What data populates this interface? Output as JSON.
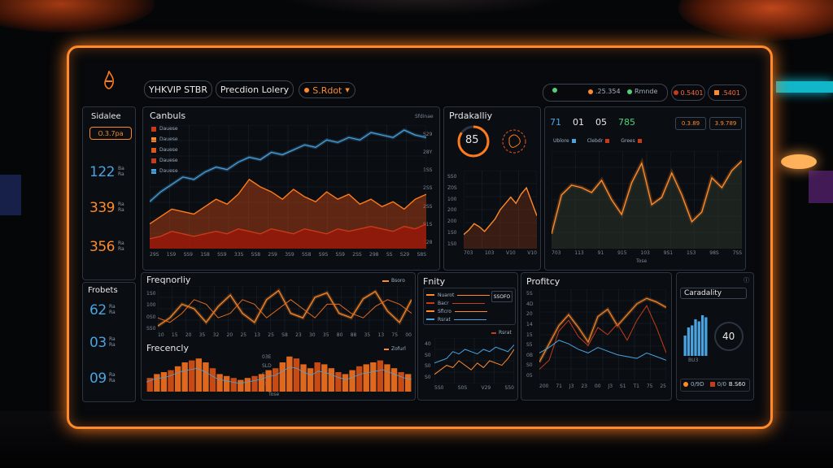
{
  "colors": {
    "accent": "#ff8a2a",
    "blue": "#4aa3df",
    "red": "#c73a1a",
    "green": "#4fd17a"
  },
  "header": {
    "logo_icon": "flame-icon",
    "brand": "YHKVIP STBR",
    "title": "Precdion Lolery",
    "select_label": "S.Rdot",
    "status_chips": [
      "",
      ".25.354",
      "Rmnde"
    ],
    "value_chips": [
      "0.5401",
      ".5401"
    ]
  },
  "sidebar": {
    "section1_title": "Sidalee",
    "pill": "O.3.7pa",
    "stats": [
      {
        "value": "122",
        "note": "Ba Ra",
        "color": "#4aa3df"
      },
      {
        "value": "339",
        "note": "Ra Ra",
        "color": "#ff8a2a"
      },
      {
        "value": "356",
        "note": "Ra Ra",
        "color": "#ff8a2a"
      }
    ],
    "section2_title": "Frobets",
    "stats2": [
      {
        "value": "62",
        "note": "Ra Ra",
        "color": "#4aa3df"
      },
      {
        "value": "03",
        "note": "Ra Ra",
        "color": "#4aa3df"
      },
      {
        "value": "09",
        "note": "Ra Ra",
        "color": "#4aa3df"
      }
    ]
  },
  "main_chart": {
    "title": "Canbuls",
    "legend": [
      "Dauese",
      "Dauese",
      "Dauese",
      "Dauese",
      "Dauese"
    ],
    "legend_colors": [
      "#c73a1a",
      "#ff8a2a",
      "#d85a1a",
      "#c73a1a",
      "#4aa3df"
    ],
    "top_right": "Sfdinae",
    "ylabels": [
      "S29",
      "28Y",
      "1SS",
      "2SS",
      "2SS",
      "S1S",
      "S28"
    ],
    "xlabels": [
      "29S",
      "1S9",
      "SS9",
      "1S8",
      "SS9",
      "33S",
      "SS8",
      "2S9",
      "3S9",
      "SS8",
      "S9S",
      "SS9",
      "2SS",
      "298",
      "SS",
      "S29",
      "S8S"
    ],
    "chart_data": {
      "type": "area",
      "series": [
        {
          "name": "",
          "values": [
            38,
            46,
            52,
            58,
            56,
            62,
            66,
            64,
            70,
            74,
            72,
            78,
            76,
            80,
            84,
            82,
            88,
            86,
            90,
            88,
            94,
            92,
            90,
            96,
            92,
            90
          ]
        },
        {
          "name": "",
          "values": [
            20,
            26,
            32,
            30,
            28,
            34,
            40,
            36,
            44,
            56,
            50,
            46,
            40,
            48,
            42,
            38,
            46,
            40,
            44,
            36,
            40,
            34,
            38,
            32,
            40,
            44
          ]
        },
        {
          "name": "",
          "values": [
            8,
            10,
            14,
            12,
            10,
            12,
            14,
            12,
            16,
            14,
            12,
            16,
            14,
            12,
            16,
            14,
            12,
            16,
            14,
            16,
            18,
            16,
            14,
            18,
            16,
            20
          ]
        }
      ]
    }
  },
  "probability": {
    "title": "Prdakalliy",
    "gauge_value": "85",
    "ylabels": [
      "SS0",
      "Z0S",
      "100",
      "200",
      "200",
      "1S0",
      "1S0"
    ],
    "xlabels": [
      "703",
      "103",
      "V10",
      "V10"
    ],
    "chart_data": {
      "type": "line",
      "series": [
        {
          "name": "",
          "values": [
            18,
            24,
            32,
            28,
            22,
            30,
            38,
            50,
            58,
            66,
            58,
            70,
            78,
            60,
            42
          ]
        }
      ]
    }
  },
  "right_top": {
    "metrics": [
      "71",
      "01",
      "05",
      "785"
    ],
    "metric_colors": [
      "#4aa3df",
      "#e8e8ea",
      "#e8e8ea",
      "#4fd17a"
    ],
    "boxes": [
      "0.3.89",
      "3.9.789"
    ],
    "legend": [
      "Ublore",
      "Clebdr",
      "Grees"
    ],
    "xlabels": [
      "703",
      "113",
      "91",
      "915",
      "103",
      "9S1",
      "1S3",
      "98S",
      "7SS"
    ],
    "xtitle": "Tose",
    "chart_data": {
      "type": "area",
      "series": [
        {
          "name": "",
          "values": [
            12,
            44,
            52,
            50,
            46,
            56,
            40,
            28,
            54,
            70,
            36,
            42,
            62,
            44,
            22,
            30,
            58,
            50,
            64,
            72
          ]
        }
      ]
    }
  },
  "frequency_top": {
    "title": "Freqnorliy",
    "legend": "Bsoro",
    "ylabels": [
      "1S0",
      "100",
      "0S0",
      "SS0"
    ],
    "xlabels": [
      "10",
      "15",
      "20",
      "35",
      "32",
      "20",
      "25",
      "13",
      "25",
      "S8",
      "23",
      "30",
      "35",
      "80",
      "88",
      "35",
      "13",
      "75",
      "00"
    ],
    "chart_data": {
      "type": "line",
      "series": [
        {
          "name": "",
          "values": [
            12,
            30,
            60,
            50,
            20,
            55,
            80,
            40,
            20,
            70,
            90,
            40,
            30,
            75,
            85,
            40,
            30,
            72,
            88,
            45,
            20,
            70
          ]
        },
        {
          "name": "",
          "values": [
            30,
            20,
            40,
            70,
            60,
            30,
            40,
            70,
            60,
            30,
            50,
            70,
            50,
            30,
            60,
            60,
            40,
            30,
            55,
            70,
            60,
            40
          ]
        }
      ]
    }
  },
  "frequency_bottom": {
    "title": "Frecencly",
    "legend": "Zofurl",
    "ylabels": [
      "03E",
      "SLD",
      "S3D",
      "SS5"
    ],
    "xtitle": "Tose",
    "chart_data": {
      "type": "bar",
      "series": [
        {
          "name": "",
          "values": [
            14,
            18,
            20,
            22,
            26,
            30,
            32,
            34,
            30,
            24,
            18,
            16,
            14,
            12,
            14,
            16,
            18,
            22,
            24,
            30,
            36,
            34,
            28,
            24,
            30,
            28,
            24,
            20,
            18,
            22,
            26,
            28,
            30,
            32,
            28,
            24,
            20,
            18
          ]
        }
      ]
    }
  },
  "entity": {
    "title": "Fnity",
    "rows": [
      "Nuarot",
      "Bacr",
      "Sflcro",
      "Rsrat"
    ],
    "box_label": "SSOFO",
    "legend": "Rsrat",
    "ylabels": [
      "40",
      "S0",
      "S0",
      "S0"
    ],
    "xlabels": [
      "5S0",
      "S0S",
      "V29",
      "S50"
    ],
    "chart_data": {
      "type": "line",
      "series": [
        {
          "name": "",
          "values": [
            18,
            20,
            22,
            28,
            26,
            30,
            28,
            26,
            30,
            28,
            32,
            30,
            28,
            34
          ]
        },
        {
          "name": "",
          "values": [
            8,
            12,
            16,
            14,
            20,
            16,
            12,
            18,
            14,
            20,
            18,
            16,
            22,
            30
          ]
        }
      ]
    }
  },
  "profitity": {
    "title": "Profitcy",
    "ylabels": [
      "5S",
      "4D",
      "20",
      "14",
      "15",
      "S5",
      "0B",
      "S0",
      "05"
    ],
    "xlabels": [
      "200",
      "71",
      "J3",
      "23",
      "00",
      "J3",
      "S1",
      "T1",
      "75",
      "25"
    ],
    "chart_data": {
      "type": "line",
      "series": [
        {
          "name": "",
          "values": [
            20,
            40,
            60,
            72,
            58,
            42,
            70,
            78,
            60,
            72,
            84,
            90,
            86,
            80
          ]
        },
        {
          "name": "",
          "values": [
            12,
            22,
            54,
            66,
            48,
            38,
            58,
            50,
            62,
            44,
            66,
            82,
            58,
            30
          ]
        },
        {
          "name": "",
          "values": [
            30,
            36,
            44,
            40,
            34,
            30,
            36,
            32,
            28,
            26,
            24,
            30,
            26,
            22
          ]
        }
      ]
    }
  },
  "capability": {
    "title": "Caradality",
    "gauge_value": "40",
    "bar_label": "BU3",
    "legend": [
      "0/9D",
      "0/0",
      "B.S60"
    ],
    "chart_data": {
      "type": "bar",
      "series": [
        {
          "name": "",
          "values": [
            20,
            28,
            30,
            36,
            34,
            40,
            38
          ]
        }
      ]
    }
  }
}
